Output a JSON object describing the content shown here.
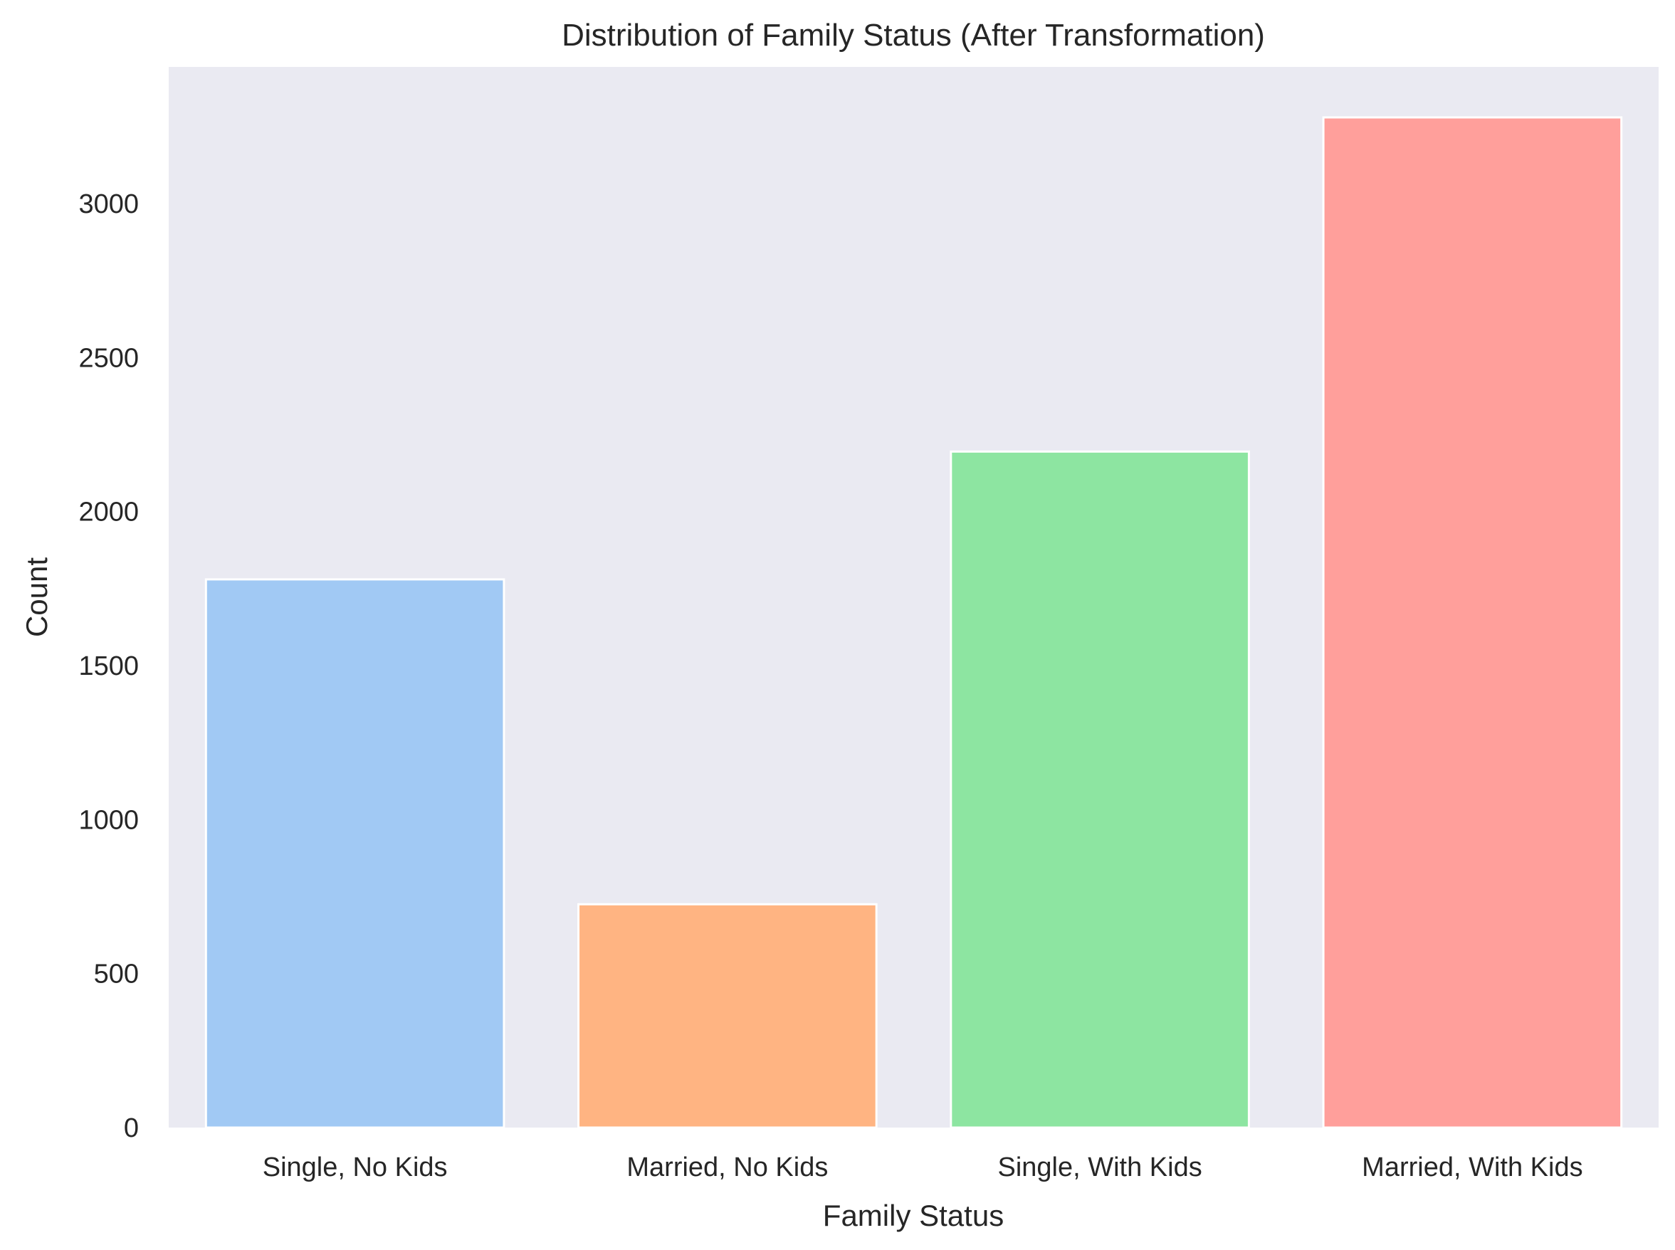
{
  "chart_data": {
    "type": "bar",
    "title": "Distribution of Family Status (After Transformation)",
    "xlabel": "Family Status",
    "ylabel": "Count",
    "categories": [
      "Single, No Kids",
      "Married, No Kids",
      "Single, With Kids",
      "Married, With Kids"
    ],
    "values": [
      1780,
      725,
      2195,
      3280
    ],
    "colors": [
      "#a1c9f4",
      "#ffb482",
      "#8de5a1",
      "#ff9f9b"
    ],
    "yticks": [
      0,
      500,
      1000,
      1500,
      2000,
      2500,
      3000
    ],
    "ylim": [
      0,
      3444
    ],
    "grid": false,
    "legend": "none",
    "plot_background": "#eaeaf2"
  }
}
